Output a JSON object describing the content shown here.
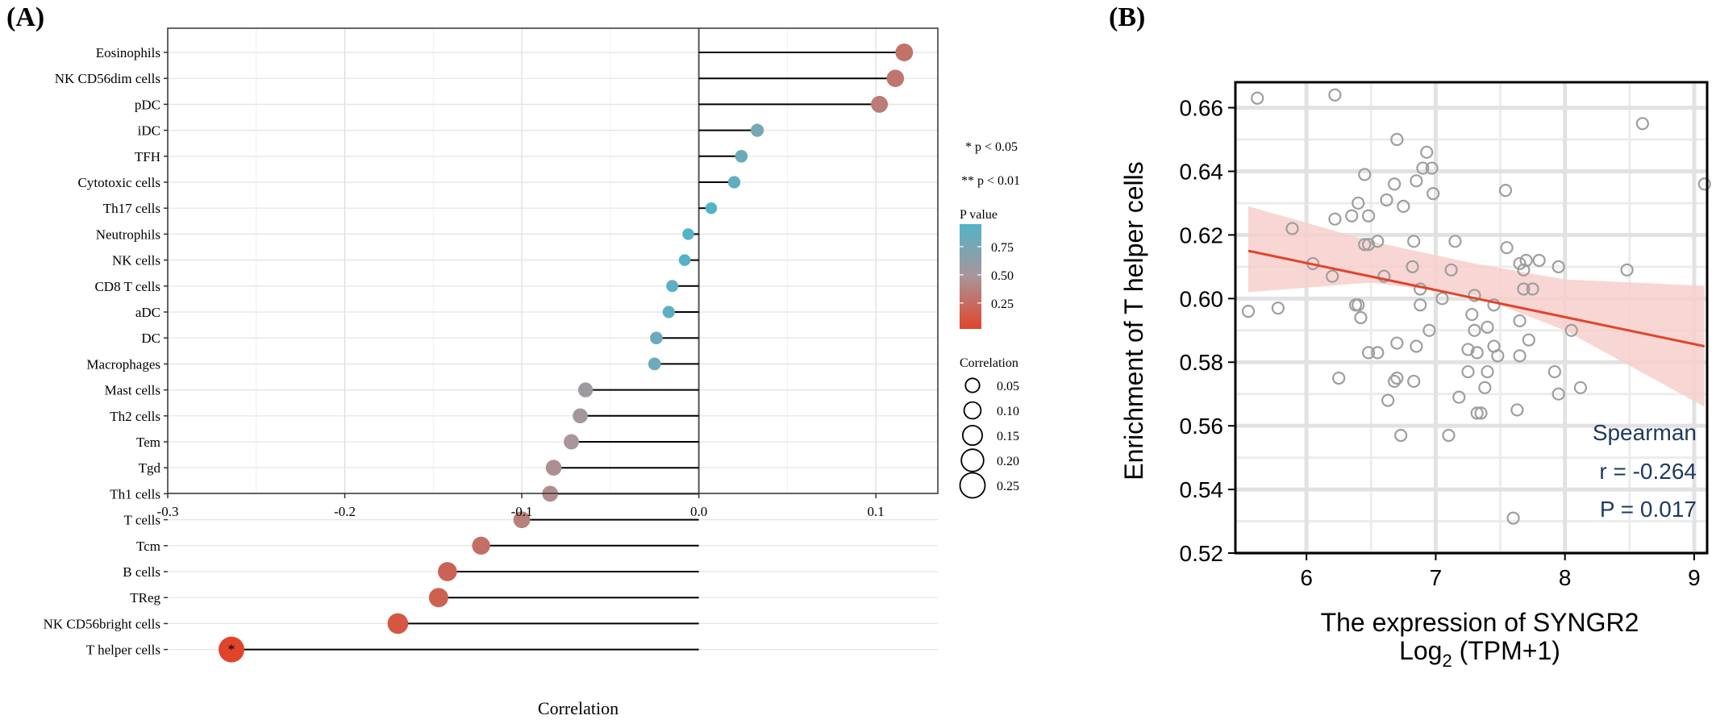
{
  "panel_a": {
    "label": "(A)",
    "chart_data": {
      "type": "lollipop",
      "xlabel": "Correlation",
      "xlim": [
        -0.3,
        0.135
      ],
      "xticks": [
        "-0.3",
        "-0.2",
        "-0.1",
        "0.0",
        "0.1"
      ],
      "xtick_values": [
        -0.3,
        -0.2,
        -0.1,
        0.0,
        0.1
      ],
      "grid": true,
      "categories": [
        "Eosinophils",
        "NK CD56dim cells",
        "pDC",
        "iDC",
        "TFH",
        "Cytotoxic cells",
        "Th17 cells",
        "Neutrophils",
        "NK cells",
        "CD8 T cells",
        "aDC",
        "DC",
        "Macrophages",
        "Mast cells",
        "Th2 cells",
        "Tem",
        "Tgd",
        "Th1 cells",
        "T cells",
        "Tcm",
        "B cells",
        "TReg",
        "NK CD56bright cells",
        "T helper cells"
      ],
      "values": [
        0.116,
        0.111,
        0.102,
        0.033,
        0.024,
        0.02,
        0.007,
        -0.006,
        -0.008,
        -0.015,
        -0.017,
        -0.024,
        -0.025,
        -0.064,
        -0.067,
        -0.072,
        -0.082,
        -0.084,
        -0.1,
        -0.123,
        -0.142,
        -0.147,
        -0.17,
        -0.264
      ],
      "p_values": [
        0.29,
        0.31,
        0.35,
        0.76,
        0.83,
        0.86,
        0.95,
        0.96,
        0.94,
        0.89,
        0.88,
        0.82,
        0.81,
        0.56,
        0.53,
        0.51,
        0.46,
        0.45,
        0.37,
        0.27,
        0.2,
        0.18,
        0.12,
        0.017
      ],
      "significance_marks": [
        "",
        "",
        "",
        "",
        "",
        "",
        "",
        "",
        "",
        "",
        "",
        "",
        "",
        "",
        "",
        "",
        "",
        "",
        "",
        "",
        "",
        "",
        "",
        "*"
      ],
      "color_low": "#e0452b",
      "color_mid": "#a9959a",
      "color_high": "#52b3c9",
      "legend": {
        "sig1": "* p < 0.05",
        "sig2": "** p < 0.01",
        "pvalue_title": "P value",
        "pvalue_ticks": [
          "0.75",
          "0.50",
          "0.25"
        ],
        "pvalue_tick_values": [
          0.75,
          0.5,
          0.25
        ],
        "size_title": "Correlation",
        "size_labels": [
          "0.05",
          "0.10",
          "0.15",
          "0.20",
          "0.25"
        ],
        "size_values": [
          0.05,
          0.1,
          0.15,
          0.2,
          0.25
        ]
      }
    }
  },
  "panel_b": {
    "label": "(B)",
    "chart_data": {
      "type": "scatter",
      "xlabel": "The expression of SYNGR2",
      "xlabel2_main": "Log",
      "xlabel2_sub": "2",
      "xlabel2_rest": " (TPM+1)",
      "ylabel": "Enrichment of T helper cells",
      "xlim": [
        5.45,
        9.1
      ],
      "ylim": [
        0.52,
        0.668
      ],
      "xticks": [
        "6",
        "7",
        "8",
        "9"
      ],
      "xtick_values": [
        6,
        7,
        8,
        9
      ],
      "yticks": [
        "0.52",
        "0.54",
        "0.56",
        "0.58",
        "0.60",
        "0.62",
        "0.64",
        "0.66"
      ],
      "ytick_values": [
        0.52,
        0.54,
        0.56,
        0.58,
        0.6,
        0.62,
        0.64,
        0.66
      ],
      "grid": true,
      "point_color": "#9e9e9e",
      "line_color": "#e0452b",
      "band_color": "#f7cfcc",
      "regression": {
        "x": [
          5.55,
          9.08
        ],
        "y": [
          0.615,
          0.585
        ]
      },
      "band_upper": [
        [
          5.55,
          0.629
        ],
        [
          6.5,
          0.618
        ],
        [
          7.3,
          0.611
        ],
        [
          8.0,
          0.606
        ],
        [
          9.08,
          0.604
        ]
      ],
      "band_lower": [
        [
          5.55,
          0.602
        ],
        [
          6.5,
          0.605
        ],
        [
          7.3,
          0.601
        ],
        [
          8.0,
          0.59
        ],
        [
          9.08,
          0.566
        ]
      ],
      "stats": {
        "method": "Spearman",
        "r": "r = -0.264",
        "p": "P = 0.017"
      },
      "text_color": "#1e3a5f",
      "points": [
        [
          5.62,
          0.663
        ],
        [
          6.22,
          0.664
        ],
        [
          8.6,
          0.655
        ],
        [
          9.08,
          0.636
        ],
        [
          6.9,
          0.641
        ],
        [
          6.93,
          0.646
        ],
        [
          6.97,
          0.641
        ],
        [
          6.7,
          0.65
        ],
        [
          6.45,
          0.639
        ],
        [
          6.68,
          0.636
        ],
        [
          6.85,
          0.637
        ],
        [
          6.98,
          0.633
        ],
        [
          6.62,
          0.631
        ],
        [
          6.4,
          0.63
        ],
        [
          6.75,
          0.629
        ],
        [
          6.35,
          0.626
        ],
        [
          6.22,
          0.625
        ],
        [
          6.48,
          0.626
        ],
        [
          7.54,
          0.634
        ],
        [
          5.89,
          0.622
        ],
        [
          6.45,
          0.617
        ],
        [
          6.55,
          0.618
        ],
        [
          6.83,
          0.618
        ],
        [
          7.15,
          0.618
        ],
        [
          6.48,
          0.617
        ],
        [
          7.55,
          0.616
        ],
        [
          7.7,
          0.612
        ],
        [
          7.8,
          0.612
        ],
        [
          7.95,
          0.61
        ],
        [
          8.48,
          0.609
        ],
        [
          6.05,
          0.611
        ],
        [
          6.82,
          0.61
        ],
        [
          7.12,
          0.609
        ],
        [
          7.65,
          0.611
        ],
        [
          7.68,
          0.609
        ],
        [
          6.2,
          0.607
        ],
        [
          6.6,
          0.607
        ],
        [
          7.3,
          0.601
        ],
        [
          7.68,
          0.603
        ],
        [
          7.75,
          0.603
        ],
        [
          6.88,
          0.603
        ],
        [
          7.05,
          0.6
        ],
        [
          6.88,
          0.598
        ],
        [
          6.4,
          0.598
        ],
        [
          5.55,
          0.596
        ],
        [
          5.78,
          0.597
        ],
        [
          6.38,
          0.598
        ],
        [
          6.42,
          0.594
        ],
        [
          7.28,
          0.595
        ],
        [
          7.45,
          0.598
        ],
        [
          7.65,
          0.593
        ],
        [
          6.95,
          0.59
        ],
        [
          7.3,
          0.59
        ],
        [
          7.4,
          0.591
        ],
        [
          7.72,
          0.587
        ],
        [
          8.05,
          0.59
        ],
        [
          6.7,
          0.586
        ],
        [
          6.85,
          0.585
        ],
        [
          7.25,
          0.584
        ],
        [
          7.32,
          0.583
        ],
        [
          7.45,
          0.585
        ],
        [
          7.48,
          0.582
        ],
        [
          7.65,
          0.582
        ],
        [
          6.48,
          0.583
        ],
        [
          6.55,
          0.583
        ],
        [
          6.25,
          0.575
        ],
        [
          6.68,
          0.574
        ],
        [
          6.83,
          0.574
        ],
        [
          6.7,
          0.575
        ],
        [
          7.25,
          0.577
        ],
        [
          7.4,
          0.577
        ],
        [
          7.92,
          0.577
        ],
        [
          7.38,
          0.572
        ],
        [
          7.18,
          0.569
        ],
        [
          7.95,
          0.57
        ],
        [
          8.12,
          0.572
        ],
        [
          6.63,
          0.568
        ],
        [
          7.32,
          0.564
        ],
        [
          7.35,
          0.564
        ],
        [
          7.63,
          0.565
        ],
        [
          6.73,
          0.557
        ],
        [
          7.1,
          0.557
        ],
        [
          7.6,
          0.531
        ]
      ]
    }
  }
}
